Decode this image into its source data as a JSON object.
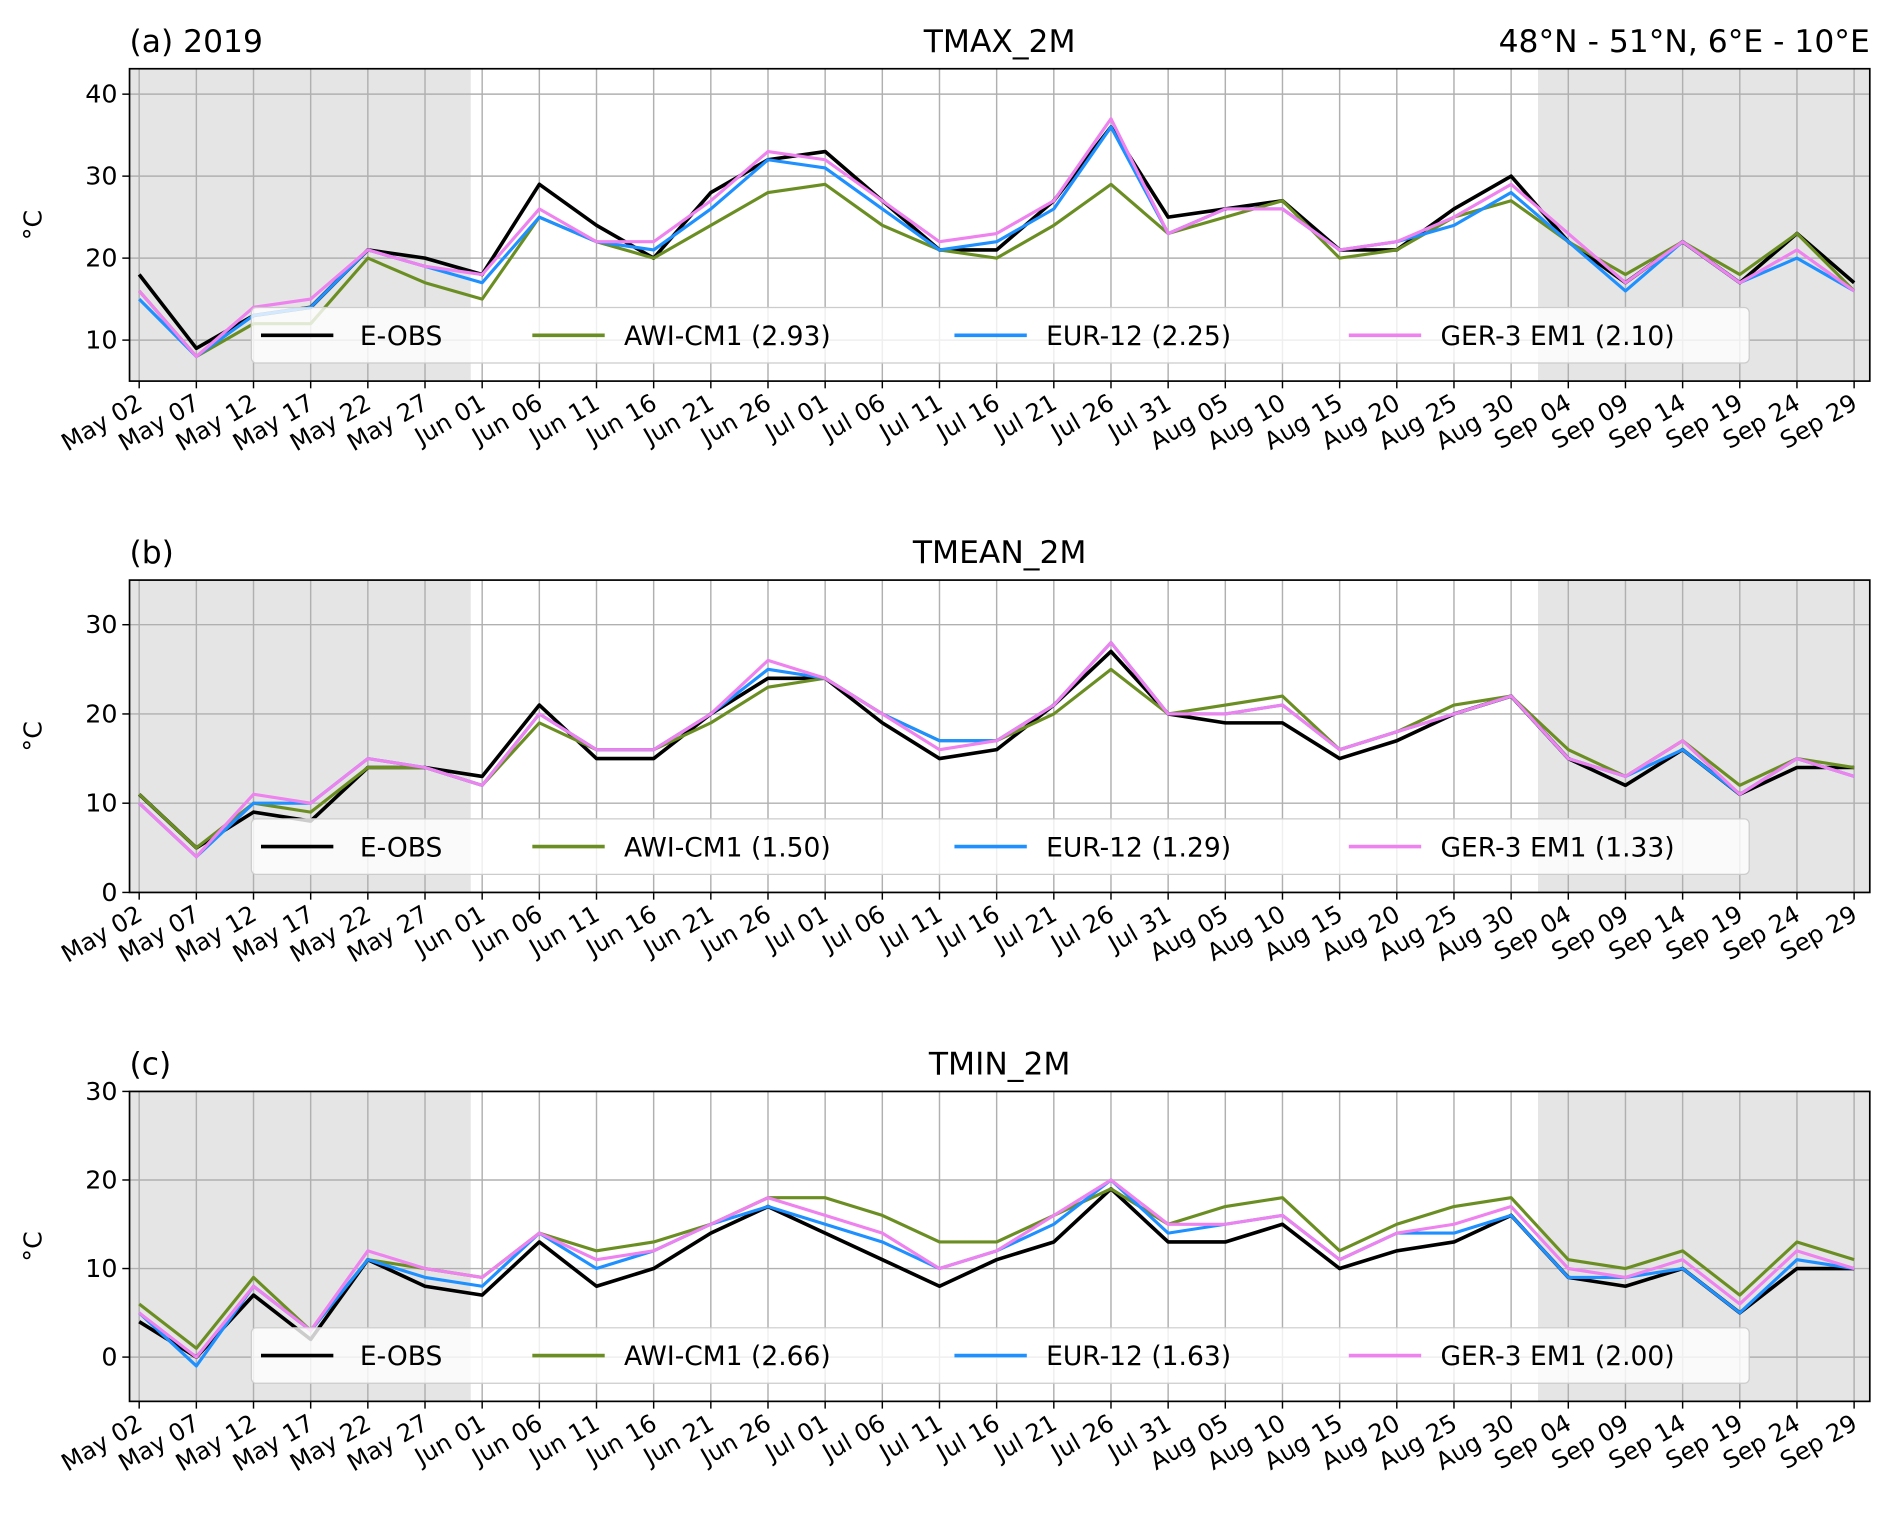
{
  "chart_data": [
    {
      "type": "line",
      "title_left": "(a) 2019",
      "title": "TMAX_2M",
      "title_right": "48°N - 51°N, 6°E - 10°E",
      "y_label": "°C",
      "categories": [
        "May 02",
        "May 07",
        "May 12",
        "May 17",
        "May 22",
        "May 27",
        "Jun 01",
        "Jun 06",
        "Jun 11",
        "Jun 16",
        "Jun 21",
        "Jun 26",
        "Jul 01",
        "Jul 06",
        "Jul 11",
        "Jul 16",
        "Jul 21",
        "Jul 26",
        "Jul 31",
        "Aug 05",
        "Aug 10",
        "Aug 15",
        "Aug 20",
        "Aug 25",
        "Aug 30",
        "Sep 04",
        "Sep 09",
        "Sep 14",
        "Sep 19",
        "Sep 24",
        "Sep 29"
      ],
      "series": [
        {
          "name": "E-OBS",
          "color": "#000000",
          "values": [
            18,
            9,
            13,
            14,
            21,
            20,
            18,
            29,
            24,
            20,
            28,
            32,
            33,
            27,
            21,
            21,
            27,
            36,
            25,
            26,
            27,
            21,
            21,
            26,
            30,
            22,
            17,
            22,
            17,
            23,
            17
          ]
        },
        {
          "name": "AWI-CM1 (2.93)",
          "color": "#6b8e23",
          "values": [
            16,
            8,
            12,
            12,
            20,
            17,
            15,
            25,
            22,
            20,
            24,
            28,
            29,
            24,
            21,
            20,
            24,
            29,
            23,
            25,
            27,
            20,
            21,
            25,
            27,
            22,
            18,
            22,
            18,
            23,
            16
          ]
        },
        {
          "name": "EUR-12 (2.25)",
          "color": "#1e90ff",
          "values": [
            15,
            8,
            13,
            14,
            21,
            19,
            17,
            25,
            22,
            21,
            26,
            32,
            31,
            26,
            21,
            22,
            26,
            36,
            23,
            26,
            26,
            21,
            22,
            24,
            28,
            22,
            16,
            22,
            17,
            20,
            16
          ]
        },
        {
          "name": "GER-3 EM1 (2.10)",
          "color": "#ee82ee",
          "values": [
            16,
            8,
            14,
            15,
            21,
            19,
            18,
            26,
            22,
            22,
            27,
            33,
            32,
            27,
            22,
            23,
            27,
            37,
            23,
            26,
            26,
            21,
            22,
            25,
            29,
            23,
            17,
            22,
            17,
            21,
            16
          ]
        }
      ],
      "ylim": [
        5,
        43.1
      ],
      "yticks": [
        10,
        20,
        30,
        40
      ],
      "grid": true,
      "legend": "lower center"
    },
    {
      "type": "line",
      "title_left": "(b)",
      "title": "TMEAN_2M",
      "y_label": "°C",
      "categories": [
        "May 02",
        "May 07",
        "May 12",
        "May 17",
        "May 22",
        "May 27",
        "Jun 01",
        "Jun 06",
        "Jun 11",
        "Jun 16",
        "Jun 21",
        "Jun 26",
        "Jul 01",
        "Jul 06",
        "Jul 11",
        "Jul 16",
        "Jul 21",
        "Jul 26",
        "Jul 31",
        "Aug 05",
        "Aug 10",
        "Aug 15",
        "Aug 20",
        "Aug 25",
        "Aug 30",
        "Sep 04",
        "Sep 09",
        "Sep 14",
        "Sep 19",
        "Sep 24",
        "Sep 29"
      ],
      "series": [
        {
          "name": "E-OBS",
          "color": "#000000",
          "values": [
            11,
            5,
            9,
            8,
            14,
            14,
            13,
            21,
            15,
            15,
            20,
            24,
            24,
            19,
            15,
            16,
            21,
            27,
            20,
            19,
            19,
            15,
            17,
            20,
            22,
            15,
            12,
            16,
            11,
            14,
            14
          ]
        },
        {
          "name": "AWI-CM1 (1.50)",
          "color": "#6b8e23",
          "values": [
            11,
            5,
            10,
            9,
            14,
            14,
            12,
            19,
            16,
            16,
            19,
            23,
            24,
            20,
            17,
            17,
            20,
            25,
            20,
            21,
            22,
            16,
            18,
            21,
            22,
            16,
            13,
            17,
            12,
            15,
            14
          ]
        },
        {
          "name": "EUR-12 (1.29)",
          "color": "#1e90ff",
          "values": [
            10,
            4,
            10,
            10,
            15,
            14,
            12,
            20,
            16,
            16,
            20,
            25,
            24,
            20,
            17,
            17,
            21,
            28,
            20,
            20,
            21,
            16,
            18,
            20,
            22,
            15,
            13,
            16,
            11,
            15,
            13
          ]
        },
        {
          "name": "GER-3 EM1 (1.33)",
          "color": "#ee82ee",
          "values": [
            10,
            4,
            11,
            10,
            15,
            14,
            12,
            20,
            16,
            16,
            20,
            26,
            24,
            20,
            16,
            17,
            21,
            28,
            20,
            20,
            21,
            16,
            18,
            20,
            22,
            15,
            13,
            17,
            11,
            15,
            13
          ]
        }
      ],
      "ylim": [
        0,
        35
      ],
      "yticks": [
        0,
        10,
        20,
        30
      ],
      "grid": true,
      "legend": "lower center"
    },
    {
      "type": "line",
      "title_left": "(c)",
      "title": "TMIN_2M",
      "y_label": "°C",
      "categories": [
        "May 02",
        "May 07",
        "May 12",
        "May 17",
        "May 22",
        "May 27",
        "Jun 01",
        "Jun 06",
        "Jun 11",
        "Jun 16",
        "Jun 21",
        "Jun 26",
        "Jul 01",
        "Jul 06",
        "Jul 11",
        "Jul 16",
        "Jul 21",
        "Jul 26",
        "Jul 31",
        "Aug 05",
        "Aug 10",
        "Aug 15",
        "Aug 20",
        "Aug 25",
        "Aug 30",
        "Sep 04",
        "Sep 09",
        "Sep 14",
        "Sep 19",
        "Sep 24",
        "Sep 29"
      ],
      "series": [
        {
          "name": "E-OBS",
          "color": "#000000",
          "values": [
            4,
            0,
            7,
            2,
            11,
            8,
            7,
            13,
            8,
            10,
            14,
            17,
            14,
            11,
            8,
            11,
            13,
            19,
            13,
            13,
            15,
            10,
            12,
            13,
            16,
            9,
            8,
            10,
            5,
            10,
            10
          ]
        },
        {
          "name": "AWI-CM1 (2.66)",
          "color": "#6b8e23",
          "values": [
            6,
            1,
            9,
            3,
            11,
            10,
            9,
            14,
            12,
            13,
            15,
            18,
            18,
            16,
            13,
            13,
            16,
            19,
            15,
            17,
            18,
            12,
            15,
            17,
            18,
            11,
            10,
            12,
            7,
            13,
            11
          ]
        },
        {
          "name": "EUR-12 (1.63)",
          "color": "#1e90ff",
          "values": [
            5,
            -1,
            8,
            3,
            11,
            9,
            8,
            14,
            10,
            12,
            15,
            17,
            15,
            13,
            10,
            12,
            15,
            20,
            14,
            15,
            16,
            11,
            14,
            14,
            16,
            9,
            9,
            10,
            5,
            11,
            10
          ]
        },
        {
          "name": "GER-3 EM1 (2.00)",
          "color": "#ee82ee",
          "values": [
            5,
            0,
            8,
            3,
            12,
            10,
            9,
            14,
            11,
            12,
            15,
            18,
            16,
            14,
            10,
            12,
            16,
            20,
            15,
            15,
            16,
            11,
            14,
            15,
            17,
            10,
            9,
            11,
            6,
            12,
            10
          ]
        }
      ],
      "ylim": [
        -5,
        30
      ],
      "yticks": [
        0,
        10,
        20,
        30
      ],
      "grid": true,
      "legend": "lower center"
    }
  ]
}
